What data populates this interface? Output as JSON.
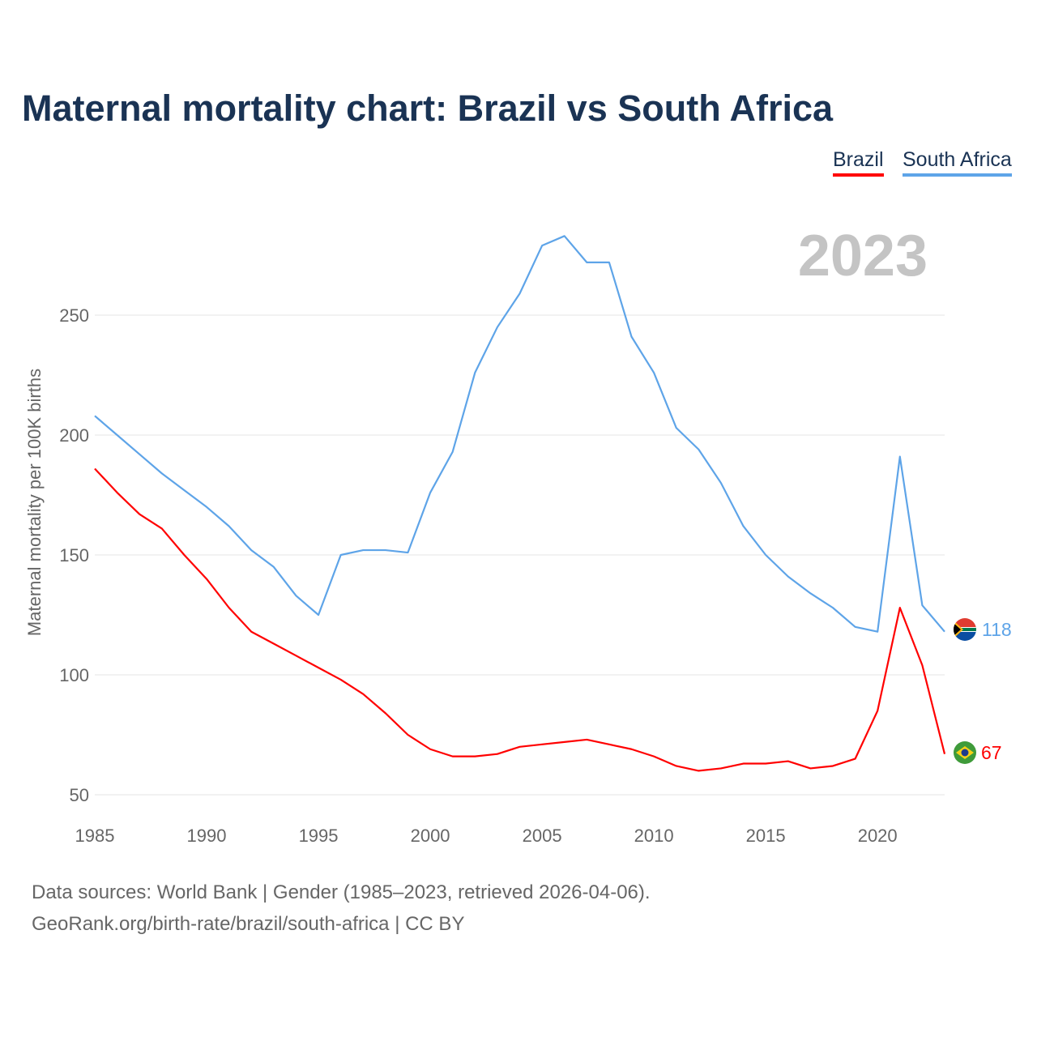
{
  "chart_data": {
    "type": "line",
    "title": "Maternal mortality chart: Brazil vs South Africa",
    "ylabel": "Maternal mortality per 100K births",
    "xlabel": "",
    "year_label": "2023",
    "x": [
      1985,
      1986,
      1987,
      1988,
      1989,
      1990,
      1991,
      1992,
      1993,
      1994,
      1995,
      1996,
      1997,
      1998,
      1999,
      2000,
      2001,
      2002,
      2003,
      2004,
      2005,
      2006,
      2007,
      2008,
      2009,
      2010,
      2011,
      2012,
      2013,
      2014,
      2015,
      2016,
      2017,
      2018,
      2019,
      2020,
      2021,
      2022,
      2023
    ],
    "xticks": [
      "1985",
      "1990",
      "1995",
      "2000",
      "2005",
      "2010",
      "2015",
      "2020"
    ],
    "yticks": [
      "50",
      "100",
      "150",
      "200",
      "250"
    ],
    "ylim": [
      45,
      293
    ],
    "xlim": [
      1985,
      2023
    ],
    "grid": true,
    "legend_position": "top-right",
    "series": [
      {
        "name": "Brazil",
        "color": "#ff0000",
        "end_label": "67",
        "values": [
          186,
          176,
          167,
          161,
          150,
          140,
          128,
          118,
          113,
          108,
          103,
          98,
          92,
          84,
          75,
          69,
          66,
          66,
          67,
          70,
          71,
          72,
          73,
          71,
          69,
          66,
          62,
          60,
          61,
          63,
          63,
          64,
          61,
          62,
          65,
          85,
          128,
          104,
          67
        ]
      },
      {
        "name": "South Africa",
        "color": "#5ea4e8",
        "end_label": "118",
        "values": [
          208,
          200,
          192,
          184,
          177,
          170,
          162,
          152,
          145,
          133,
          125,
          150,
          152,
          152,
          151,
          176,
          193,
          226,
          245,
          259,
          279,
          283,
          272,
          272,
          241,
          226,
          203,
          194,
          180,
          162,
          150,
          141,
          134,
          128,
          120,
          118,
          191,
          129,
          118
        ]
      }
    ]
  },
  "footer": {
    "line1": "Data sources: World Bank | Gender (1985–2023, retrieved 2026-04-06).",
    "line2": "GeoRank.org/birth-rate/brazil/south-africa | CC BY"
  }
}
